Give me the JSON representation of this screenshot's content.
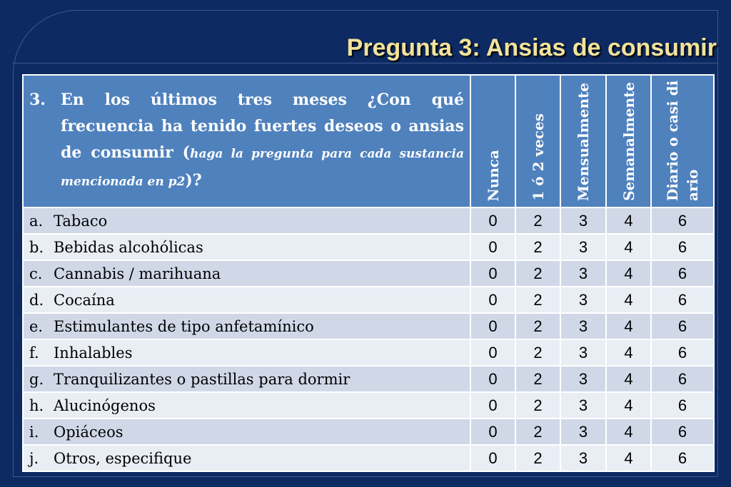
{
  "slide": {
    "title": "Pregunta 3: Ansias de consumir"
  },
  "question": {
    "number": "3.",
    "text_main": "En los últimos tres meses ¿Con qué frecuencia ha tenido fuertes deseos o ansias de consumir (",
    "text_instruction": "haga la pregunta para cada sustancia mencionada en p2",
    "text_end": ")?"
  },
  "columns": [
    "Nunca",
    "1 ó 2 veces",
    "Mensualmente",
    "Semanalmente",
    "Diario o casi diario"
  ],
  "rows": [
    {
      "letter": "a.",
      "label": "Tabaco",
      "values": [
        "0",
        "2",
        "3",
        "4",
        "6"
      ]
    },
    {
      "letter": "b.",
      "label": "Bebidas alcohólicas",
      "values": [
        "0",
        "2",
        "3",
        "4",
        "6"
      ]
    },
    {
      "letter": "c.",
      "label": "Cannabis / marihuana",
      "values": [
        "0",
        "2",
        "3",
        "4",
        "6"
      ]
    },
    {
      "letter": "d.",
      "label": "Cocaína",
      "values": [
        "0",
        "2",
        "3",
        "4",
        "6"
      ]
    },
    {
      "letter": "e.",
      "label": "Estimulantes de tipo anfetamínico",
      "values": [
        "0",
        "2",
        "3",
        "4",
        "6"
      ]
    },
    {
      "letter": "f.",
      "label": "Inhalables",
      "values": [
        "0",
        "2",
        "3",
        "4",
        "6"
      ]
    },
    {
      "letter": "g.",
      "label": "Tranquilizantes o pastillas para dormir",
      "values": [
        "0",
        "2",
        "3",
        "4",
        "6"
      ]
    },
    {
      "letter": "h.",
      "label": "Alucinógenos",
      "values": [
        "0",
        "2",
        "3",
        "4",
        "6"
      ]
    },
    {
      "letter": "i.",
      "label": "Opiáceos",
      "values": [
        "0",
        "2",
        "3",
        "4",
        "6"
      ]
    },
    {
      "letter": "j.",
      "label": "Otros, especifique",
      "values": [
        "0",
        "2",
        "3",
        "4",
        "6"
      ]
    }
  ],
  "colors": {
    "background": "#0d2a63",
    "title": "#f2e39a",
    "header": "#4f81bd",
    "row_odd": "#d0d8e8",
    "row_even": "#e9edf4"
  }
}
